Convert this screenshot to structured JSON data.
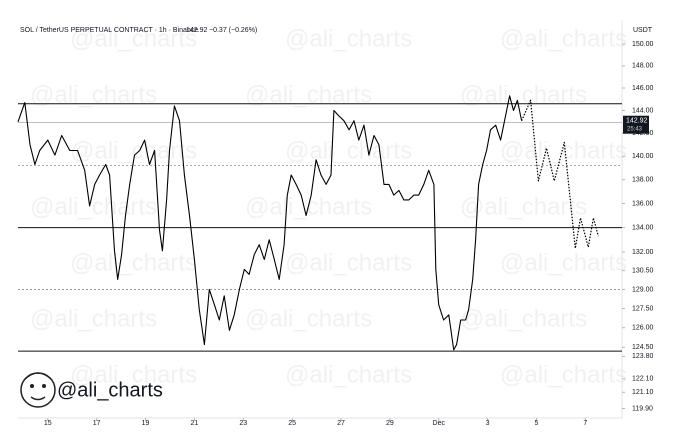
{
  "chart_data": {
    "type": "line",
    "title": "SOL / TetherUS PERPETUAL CONTRACT · 1h · Binance",
    "last_price": 142.92,
    "change": "−0.37 (−0.26%)",
    "countdown": "25:43",
    "currency": "USDT",
    "brand": "@ali_charts",
    "log_scale": true,
    "xlim": [
      13.78,
      38.5
    ],
    "xticks": [
      15,
      17,
      19,
      21,
      23,
      25,
      27,
      29,
      {
        "value": 31,
        "label": "Dec"
      },
      {
        "value": 33,
        "label": "3"
      },
      {
        "value": 35,
        "label": "5"
      },
      {
        "value": 37,
        "label": "7"
      }
    ],
    "ylim": [
      119.2,
      151.3
    ],
    "yticks": [
      {
        "value": 150,
        "label": "150.00"
      },
      {
        "value": 148,
        "label": "148.00"
      },
      {
        "value": 146,
        "label": "146.00"
      },
      {
        "value": 144,
        "label": "144.00"
      },
      {
        "value": 142,
        "label": "142.00"
      },
      {
        "value": 140,
        "label": "140.00"
      },
      {
        "value": 138,
        "label": "138.00"
      },
      {
        "value": 136,
        "label": "136.00"
      },
      {
        "value": 134,
        "label": "134.00"
      },
      {
        "value": 132,
        "label": "132.00"
      },
      {
        "value": 130.5,
        "label": "130.50"
      },
      {
        "value": 129,
        "label": "129.00"
      },
      {
        "value": 127.5,
        "label": "127.50"
      },
      {
        "value": 126,
        "label": "126.00"
      },
      {
        "value": 124.5,
        "label": "124.50"
      },
      {
        "value": 123.8,
        "label": "123.80"
      },
      {
        "value": 122.1,
        "label": "122.10"
      },
      {
        "value": 121.1,
        "label": "121.10"
      },
      {
        "value": 119.9,
        "label": "119.90"
      }
    ],
    "levels": [
      {
        "value": 144.6,
        "style": "solid"
      },
      {
        "value": 139.2,
        "style": "dotted"
      },
      {
        "value": 134,
        "style": "solid"
      },
      {
        "value": 129,
        "style": "dotted"
      },
      {
        "value": 124.2,
        "style": "solid"
      }
    ],
    "series": [
      {
        "color": "#000000",
        "style": "solid",
        "x": [
          13.78,
          14.06,
          14.27,
          14.47,
          14.67,
          15.0,
          15.29,
          15.57,
          15.9,
          16.22,
          16.51,
          16.71,
          16.92,
          17.12,
          17.37,
          17.53,
          17.73,
          17.86,
          18.02,
          18.18,
          18.35,
          18.55,
          18.76,
          18.96,
          19.16,
          19.37,
          19.57,
          19.69,
          19.86,
          19.98,
          20.18,
          20.39,
          20.59,
          20.8,
          21.0,
          21.2,
          21.41,
          21.61,
          21.82,
          22.02,
          22.22,
          22.43,
          22.63,
          22.84,
          23.04,
          23.24,
          23.45,
          23.65,
          23.86,
          24.06,
          24.27,
          24.47,
          24.67,
          24.8,
          24.96,
          25.16,
          25.37,
          25.57,
          25.78,
          25.98,
          26.18,
          26.39,
          26.59,
          26.71,
          26.92,
          27.12,
          27.33,
          27.53,
          27.73,
          27.94,
          28.14,
          28.35,
          28.55,
          28.76,
          28.96,
          29.16,
          29.37,
          29.57,
          29.78,
          29.98,
          30.18,
          30.39,
          30.59,
          30.8,
          30.88,
          31.0,
          31.2,
          31.41,
          31.61,
          31.73,
          31.9,
          32.1,
          32.22,
          32.39,
          32.51,
          32.63,
          32.8,
          32.96,
          33.12,
          33.33,
          33.53,
          33.73,
          33.9,
          34.06,
          34.22,
          34.39
        ],
        "values": [
          143,
          144.7,
          141,
          139.3,
          140.5,
          141.4,
          140.1,
          141.8,
          140.5,
          140.5,
          138.8,
          135.8,
          137.6,
          138.4,
          139.3,
          138.4,
          132.1,
          129.8,
          131.8,
          135,
          137.6,
          140.1,
          140.5,
          141.4,
          139.3,
          140.5,
          133.8,
          132.1,
          136.3,
          140.5,
          144.4,
          143.1,
          138.4,
          135,
          131.4,
          127.4,
          124.7,
          129,
          127.8,
          126.6,
          128.5,
          125.8,
          127,
          129,
          130.6,
          130.2,
          131.8,
          132.6,
          131.4,
          133,
          131.4,
          129.8,
          132.6,
          136.7,
          138.4,
          137.6,
          136.7,
          135,
          136.7,
          139.7,
          138.4,
          137.6,
          138.4,
          144,
          143.5,
          143.1,
          142.3,
          143.1,
          141.4,
          142.7,
          140.1,
          141.8,
          141,
          137.6,
          137.6,
          136.7,
          137.1,
          136.3,
          136.3,
          136.7,
          136.7,
          137.6,
          138.8,
          137.6,
          130.6,
          127.8,
          126.6,
          127,
          124.3,
          124.7,
          126.6,
          126.6,
          127.4,
          129.8,
          133,
          137.6,
          139.3,
          140.5,
          142.3,
          142.7,
          141.4,
          143.5,
          145.3,
          144,
          144.9,
          143.1
        ]
      },
      {
        "color": "#000000",
        "style": "dotted",
        "x": [
          34.39,
          34.76,
          35.08,
          35.41,
          35.73,
          36.14,
          36.59,
          36.8,
          37.12,
          37.33,
          37.53
        ],
        "values": [
          143.1,
          144.9,
          137.9,
          140.7,
          137.9,
          141.2,
          132.3,
          134.8,
          132.4,
          134.8,
          133.3
        ]
      }
    ]
  }
}
